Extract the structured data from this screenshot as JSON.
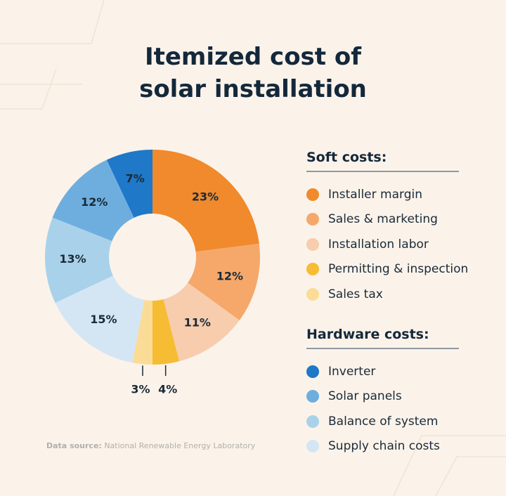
{
  "title_line1": "Itemized cost of",
  "title_line2": "solar installation",
  "legend": {
    "soft_heading": "Soft costs:",
    "soft_items": [
      {
        "label": "Installer margin",
        "color": "#F08A2C"
      },
      {
        "label": "Sales & marketing",
        "color": "#F5A86A"
      },
      {
        "label": "Installation labor",
        "color": "#F7CDAE"
      },
      {
        "label": "Permitting & inspection",
        "color": "#F6BC34"
      },
      {
        "label": "Sales tax",
        "color": "#FBDC96"
      }
    ],
    "hardware_heading": "Hardware costs:",
    "hardware_items": [
      {
        "label": "Inverter",
        "color": "#1F78C8"
      },
      {
        "label": "Solar panels",
        "color": "#6EAEDF"
      },
      {
        "label": "Balance of system",
        "color": "#A9D2EA"
      },
      {
        "label": "Supply chain costs",
        "color": "#D4E6F4"
      }
    ]
  },
  "source": {
    "label": "Data source:",
    "text": "National Renewable Energy Laboratory"
  },
  "chart_data": {
    "type": "pie",
    "title": "Itemized cost of solar installation",
    "labels": [
      "Installer margin",
      "Sales & marketing",
      "Installation labor",
      "Permitting & inspection",
      "Sales tax",
      "Supply chain costs",
      "Balance of system",
      "Solar panels",
      "Inverter"
    ],
    "values": [
      23,
      12,
      11,
      4,
      3,
      15,
      13,
      12,
      7
    ],
    "value_labels": [
      "23%",
      "12%",
      "11%",
      "4%",
      "3%",
      "15%",
      "13%",
      "12%",
      "7%"
    ],
    "colors": [
      "#F08A2C",
      "#F5A86A",
      "#F7CDAE",
      "#F6BC34",
      "#FBDC96",
      "#D4E6F4",
      "#A9D2EA",
      "#6EAEDF",
      "#1F78C8"
    ],
    "groups": {
      "Soft costs": [
        "Installer margin",
        "Sales & marketing",
        "Installation labor",
        "Permitting & inspection",
        "Sales tax"
      ],
      "Hardware costs": [
        "Supply chain costs",
        "Balance of system",
        "Solar panels",
        "Inverter"
      ]
    },
    "donut": true,
    "legend_position": "right"
  }
}
